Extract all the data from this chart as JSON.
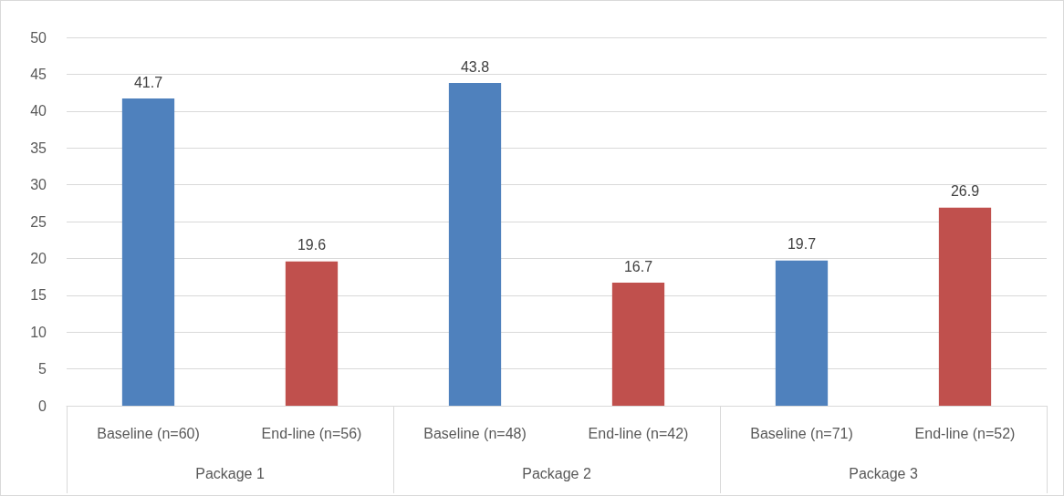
{
  "chart_data": {
    "type": "bar",
    "categories": [
      "Baseline (n=60)",
      "End-line (n=56)",
      "Baseline (n=48)",
      "End-line (n=42)",
      "Baseline (n=71)",
      "End-line (n=52)"
    ],
    "values": [
      41.7,
      19.6,
      43.8,
      16.7,
      19.7,
      26.9
    ],
    "colors": [
      "#4f81bd",
      "#c0504d",
      "#4f81bd",
      "#c0504d",
      "#4f81bd",
      "#c0504d"
    ],
    "annotations": [
      "Package 1",
      "Package 2",
      "Package 3"
    ],
    "ylim": [
      0,
      50
    ],
    "yticks": [
      0,
      5,
      10,
      15,
      20,
      25,
      30,
      35,
      40,
      45,
      50
    ],
    "grid": "y",
    "data_labels": true
  }
}
